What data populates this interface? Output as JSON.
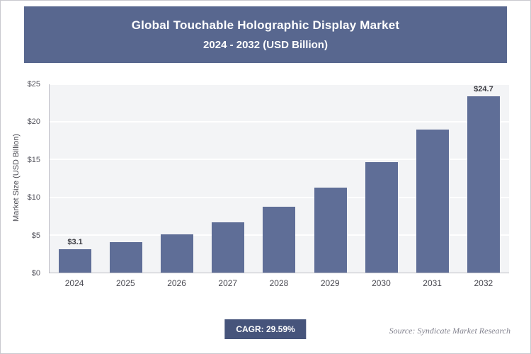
{
  "header": {
    "title_line1": "Global Touchable Holographic Display Market",
    "title_line2": "2024 - 2032 (USD Billion)"
  },
  "chart_data": {
    "type": "bar",
    "title": "Global Touchable Holographic Display Market 2024 - 2032 (USD Billion)",
    "categories": [
      "2024",
      "2025",
      "2026",
      "2027",
      "2028",
      "2029",
      "2030",
      "2031",
      "2032"
    ],
    "values": [
      3.1,
      4.0,
      5.1,
      6.7,
      8.7,
      11.3,
      14.7,
      19.0,
      24.7
    ],
    "bar_labels": [
      "$3.1",
      "",
      "",
      "",
      "",
      "",
      "",
      "",
      "$24.7"
    ],
    "xlabel": "",
    "ylabel": "Market Size (USD Billion)",
    "ylim": [
      0,
      25
    ],
    "yticks": [
      "$0",
      "$5",
      "$10",
      "$15",
      "$20",
      "$25"
    ],
    "grid": "horizontal",
    "legend": "none",
    "bar_color": "#5f6e97"
  },
  "footer": {
    "cagr_label": "CAGR: 29.59%",
    "source": "Source: Syndicate Market Research"
  },
  "colors": {
    "header_bg": "#58678f",
    "bar": "#5f6e97",
    "badge_bg": "#46547b",
    "plot_bg": "#f3f4f6"
  }
}
